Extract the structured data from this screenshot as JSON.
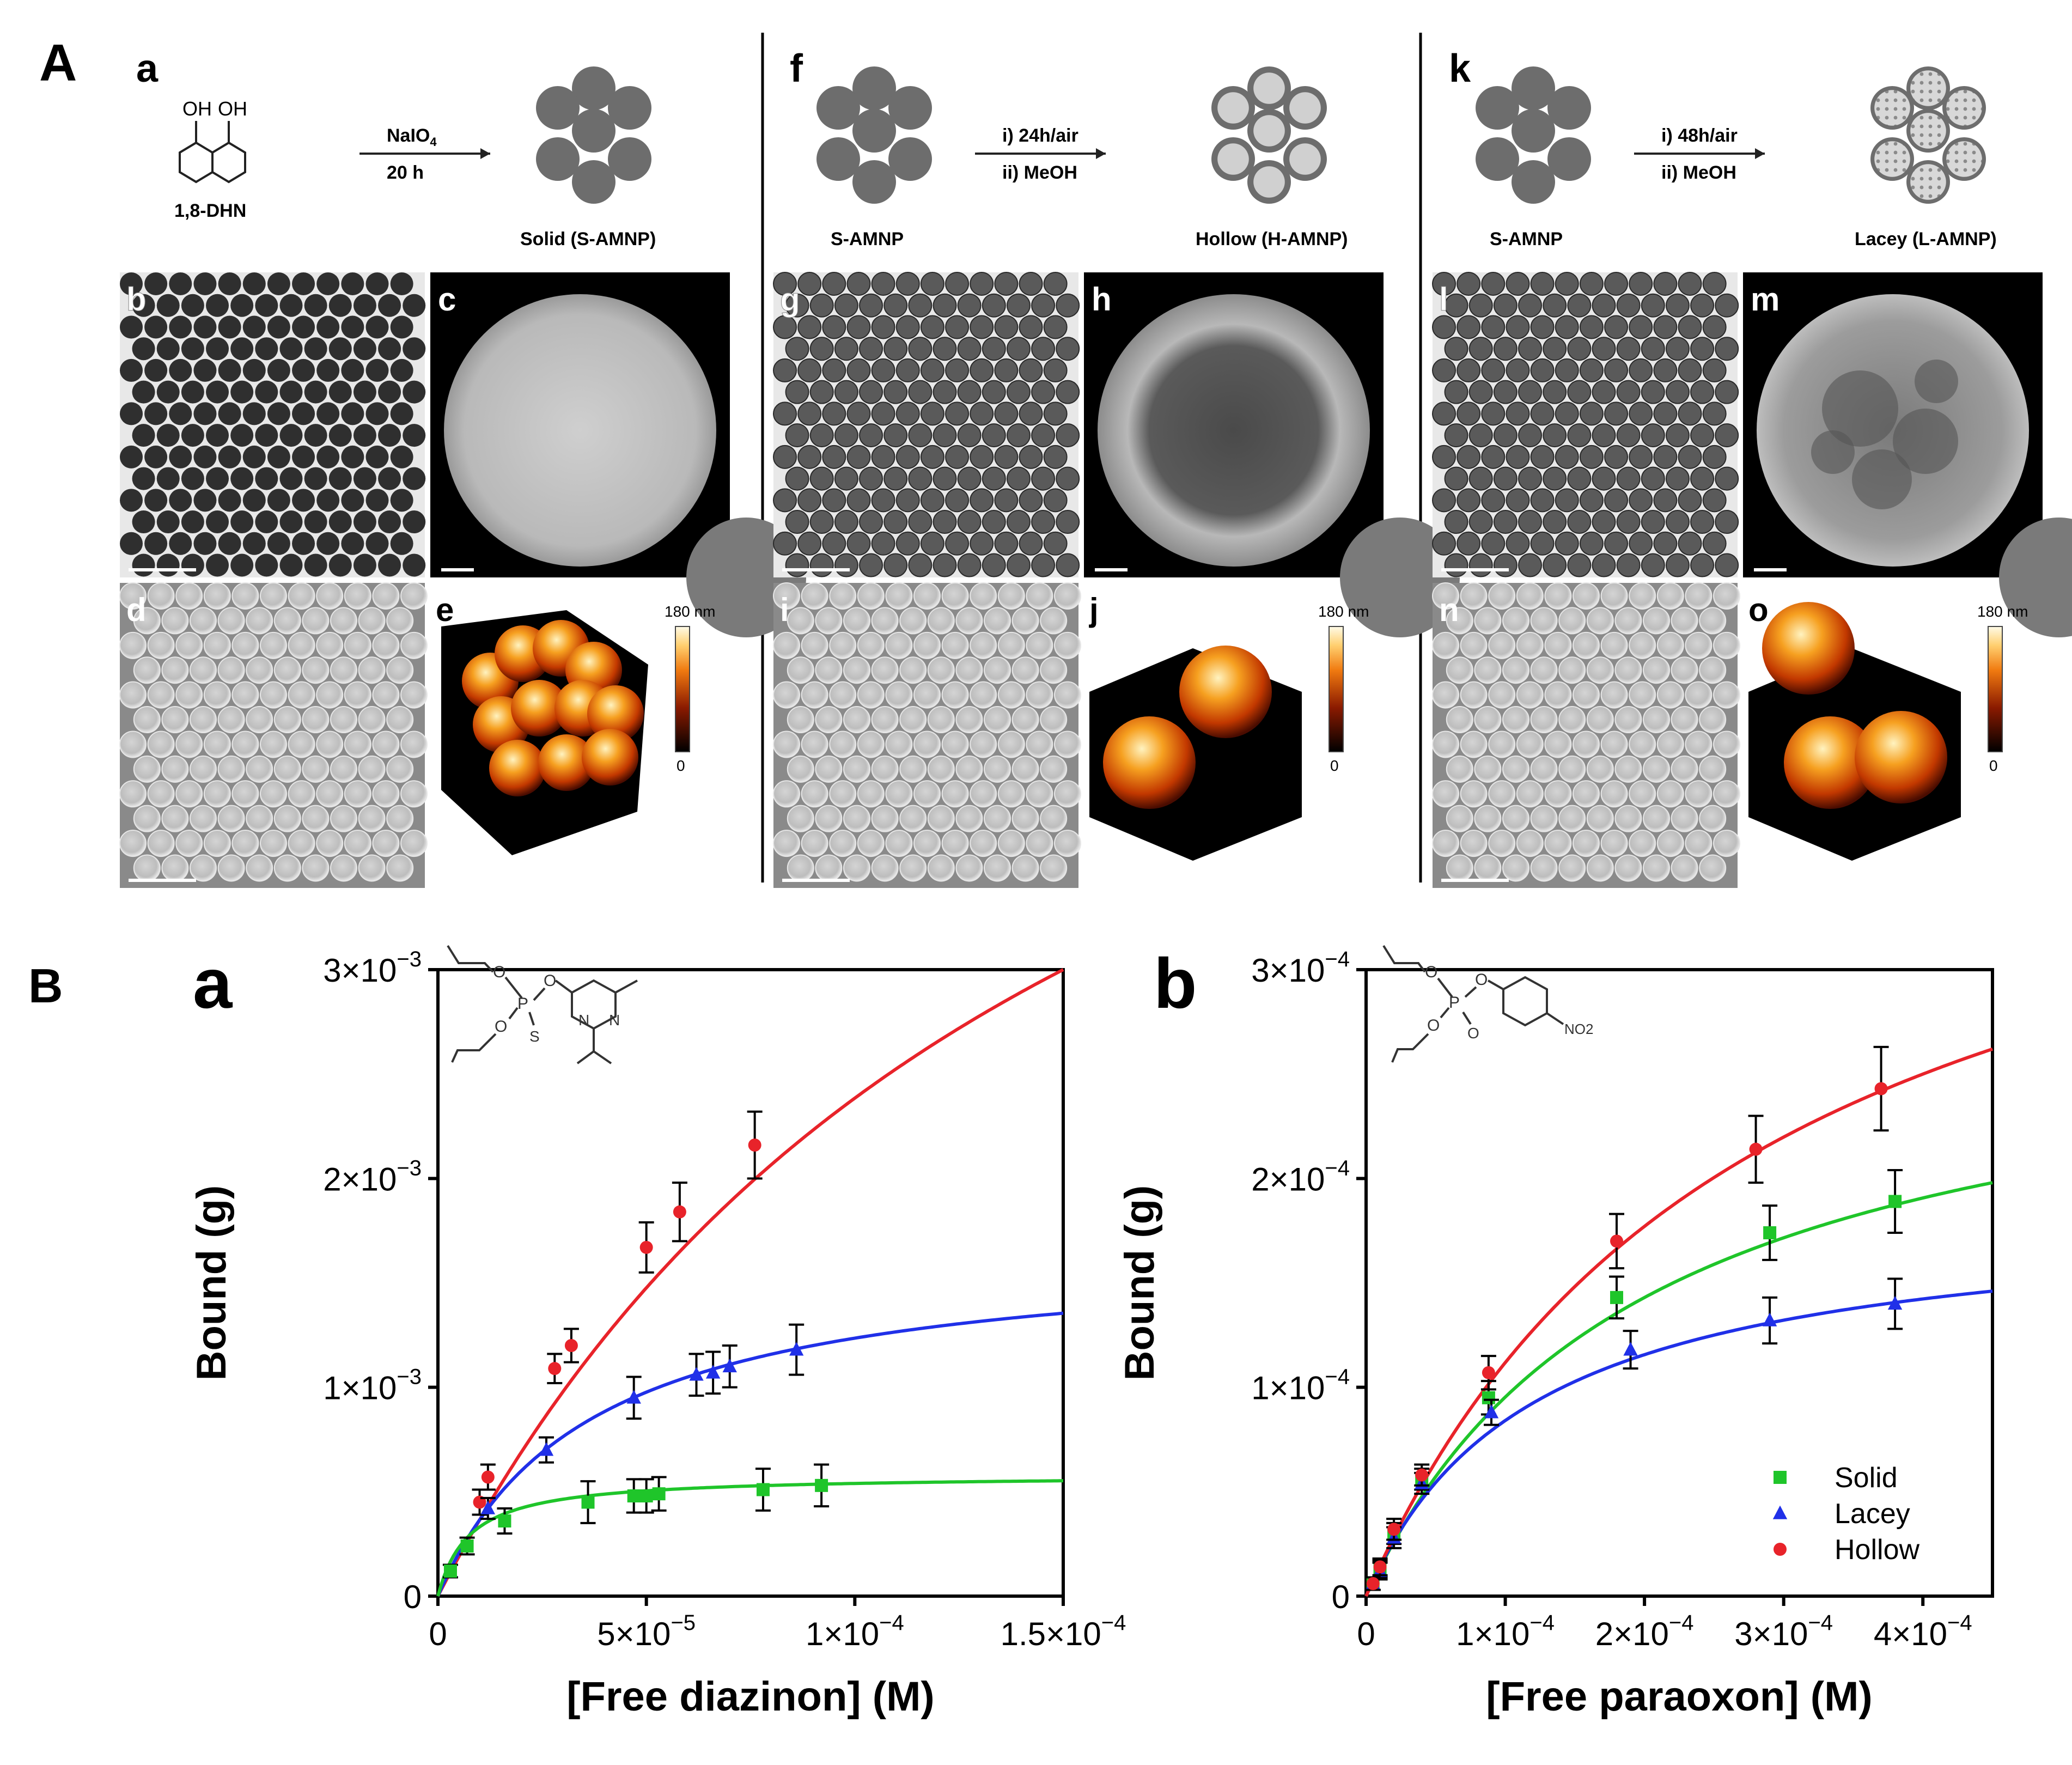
{
  "panel_labels": {
    "A": "A",
    "B": "B"
  },
  "part_a": {
    "columns": [
      {
        "letter": "a",
        "reactant_label": "1,8-DHN",
        "oh_labels": [
          "OH",
          "OH"
        ],
        "arrow_top": "NaIO",
        "arrow_top_sub": "4",
        "arrow_bottom": "20 h",
        "product_label": "Solid (S-AMNP)",
        "product_type": "solid",
        "image_letters": [
          "b",
          "c",
          "d",
          "e"
        ],
        "afm_scale": {
          "max": "180 nm",
          "min": "0"
        }
      },
      {
        "letter": "f",
        "reactant_label": "S-AMNP",
        "arrow_top": "i) 24h/air",
        "arrow_bottom": "ii) MeOH",
        "product_label": "Hollow (H-AMNP)",
        "product_type": "hollow",
        "image_letters": [
          "g",
          "h",
          "i",
          "j"
        ],
        "afm_scale": {
          "max": "180 nm",
          "min": "0"
        }
      },
      {
        "letter": "k",
        "reactant_label": "S-AMNP",
        "arrow_top": "i) 48h/air",
        "arrow_bottom": "ii) MeOH",
        "product_label": "Lacey (L-AMNP)",
        "product_type": "lacey",
        "image_letters": [
          "l",
          "m",
          "n",
          "o"
        ],
        "afm_scale": {
          "max": "180 nm",
          "min": "0"
        }
      }
    ],
    "colors": {
      "particle": "#6d6d6d",
      "particle_light": "#d0d0d0",
      "micro_bg": "#e8e8e8",
      "sem_bg": "#8a8a8a"
    }
  },
  "chart_data": [
    {
      "type": "scatter",
      "panel_letter": "a",
      "xlabel": "[Free diazinon] (M)",
      "ylabel": "Bound (g)",
      "xlim": [
        0,
        0.00015
      ],
      "ylim": [
        0,
        0.003
      ],
      "x_ticks": [
        {
          "value": 0,
          "mant": "0",
          "exp": ""
        },
        {
          "value": 5e-05,
          "mant": "5×10",
          "exp": "−5"
        },
        {
          "value": 0.0001,
          "mant": "1×10",
          "exp": "−4"
        },
        {
          "value": 0.00015,
          "mant": "1.5×10",
          "exp": "−4"
        }
      ],
      "y_ticks": [
        {
          "value": 0,
          "mant": "0",
          "exp": ""
        },
        {
          "value": 0.001,
          "mant": "1×10",
          "exp": "−3"
        },
        {
          "value": 0.002,
          "mant": "2×10",
          "exp": "−3"
        },
        {
          "value": 0.003,
          "mant": "3×10",
          "exp": "−3"
        }
      ],
      "series": [
        {
          "name": "Hollow",
          "color": "#e8232a",
          "marker": "circle",
          "fit": {
            "bmax": 0.0062,
            "kd": 0.00016
          },
          "points": [
            [
              3e-06,
              0.00012
            ],
            [
              1e-05,
              0.00045
            ],
            [
              1.2e-05,
              0.00057
            ],
            [
              2.8e-05,
              0.00109
            ],
            [
              3.2e-05,
              0.0012
            ],
            [
              5e-05,
              0.00167
            ],
            [
              5.8e-05,
              0.00184
            ],
            [
              7.6e-05,
              0.00216
            ]
          ],
          "errors": [
            3e-05,
            6e-05,
            6e-05,
            7e-05,
            8e-05,
            0.00012,
            0.00014,
            0.00016
          ]
        },
        {
          "name": "Lacey",
          "color": "#2030e8",
          "marker": "triangle",
          "fit": {
            "bmax": 0.00168,
            "kd": 3.6e-05
          },
          "points": [
            [
              3e-06,
              0.00012
            ],
            [
              1.2e-05,
              0.00042
            ],
            [
              2.6e-05,
              0.0007
            ],
            [
              4.7e-05,
              0.00095
            ],
            [
              6.2e-05,
              0.00106
            ],
            [
              6.6e-05,
              0.00107
            ],
            [
              7e-05,
              0.0011
            ],
            [
              8.6e-05,
              0.00118
            ]
          ],
          "errors": [
            3e-05,
            5e-05,
            6e-05,
            0.0001,
            0.0001,
            0.0001,
            0.0001,
            0.00012
          ]
        },
        {
          "name": "Solid",
          "color": "#1fc52a",
          "marker": "square",
          "fit": {
            "bmax": 0.00058,
            "kd": 7.5e-06
          },
          "points": [
            [
              3e-06,
              0.00012
            ],
            [
              7e-06,
              0.00024
            ],
            [
              1.6e-05,
              0.00036
            ],
            [
              3.6e-05,
              0.00045
            ],
            [
              4.7e-05,
              0.00048
            ],
            [
              5e-05,
              0.00048
            ],
            [
              5.3e-05,
              0.00049
            ],
            [
              7.8e-05,
              0.00051
            ],
            [
              9.2e-05,
              0.00053
            ]
          ],
          "errors": [
            3e-05,
            4e-05,
            6e-05,
            0.0001,
            8e-05,
            8e-05,
            8e-05,
            0.0001,
            0.0001
          ]
        }
      ]
    },
    {
      "type": "scatter",
      "panel_letter": "b",
      "xlabel": "[Free paraoxon] (M)",
      "ylabel": "Bound (g)",
      "xlim": [
        0,
        0.00045
      ],
      "ylim": [
        0,
        0.0003
      ],
      "x_ticks": [
        {
          "value": 0,
          "mant": "0",
          "exp": ""
        },
        {
          "value": 0.0001,
          "mant": "1×10",
          "exp": "−4"
        },
        {
          "value": 0.0002,
          "mant": "2×10",
          "exp": "−4"
        },
        {
          "value": 0.0003,
          "mant": "3×10",
          "exp": "−4"
        },
        {
          "value": 0.0004,
          "mant": "4×10",
          "exp": "−4"
        }
      ],
      "y_ticks": [
        {
          "value": 0,
          "mant": "0",
          "exp": ""
        },
        {
          "value": 0.0001,
          "mant": "1×10",
          "exp": "−4"
        },
        {
          "value": 0.0002,
          "mant": "2×10",
          "exp": "−4"
        },
        {
          "value": 0.0003,
          "mant": "3×10",
          "exp": "−4"
        }
      ],
      "legend": {
        "position": "bottom-right",
        "entries": [
          "Solid",
          "Lacey",
          "Hollow"
        ]
      },
      "series": [
        {
          "name": "Solid",
          "color": "#1fc52a",
          "marker": "square",
          "fit": {
            "bmax": 0.000286,
            "kd": 0.0002
          },
          "points": [
            [
              5e-06,
              6e-06
            ],
            [
              1e-05,
              1.3e-05
            ],
            [
              2e-05,
              3e-05
            ],
            [
              4e-05,
              5.6e-05
            ],
            [
              8.8e-05,
              9.5e-05
            ],
            [
              0.00018,
              0.000143
            ],
            [
              0.00029,
              0.000174
            ],
            [
              0.00038,
              0.000189
            ]
          ],
          "errors": [
            3e-06,
            4e-06,
            5e-06,
            5e-06,
            8e-06,
            1e-05,
            1.3e-05,
            1.5e-05
          ]
        },
        {
          "name": "Lacey",
          "color": "#2030e8",
          "marker": "triangle",
          "fit": {
            "bmax": 0.000185,
            "kd": 0.00012
          },
          "points": [
            [
              5e-06,
              6e-06
            ],
            [
              1e-05,
              1.2e-05
            ],
            [
              2e-05,
              2.8e-05
            ],
            [
              4e-05,
              5.4e-05
            ],
            [
              9e-05,
              8.8e-05
            ],
            [
              0.00019,
              0.000118
            ],
            [
              0.00029,
              0.000132
            ],
            [
              0.00038,
              0.00014
            ]
          ],
          "errors": [
            3e-06,
            4e-06,
            5e-06,
            5e-06,
            6e-06,
            9e-06,
            1.1e-05,
            1.2e-05
          ]
        },
        {
          "name": "Hollow",
          "color": "#e8232a",
          "marker": "circle",
          "fit": {
            "bmax": 0.000425,
            "kd": 0.00028
          },
          "points": [
            [
              5e-06,
              6e-06
            ],
            [
              1e-05,
              1.4e-05
            ],
            [
              2e-05,
              3.2e-05
            ],
            [
              4e-05,
              5.8e-05
            ],
            [
              8.8e-05,
              0.000107
            ],
            [
              0.00018,
              0.00017
            ],
            [
              0.00028,
              0.000214
            ],
            [
              0.00037,
              0.000243
            ]
          ],
          "errors": [
            3e-06,
            4e-06,
            5e-06,
            5e-06,
            8e-06,
            1.3e-05,
            1.6e-05,
            2e-05
          ]
        }
      ]
    }
  ]
}
